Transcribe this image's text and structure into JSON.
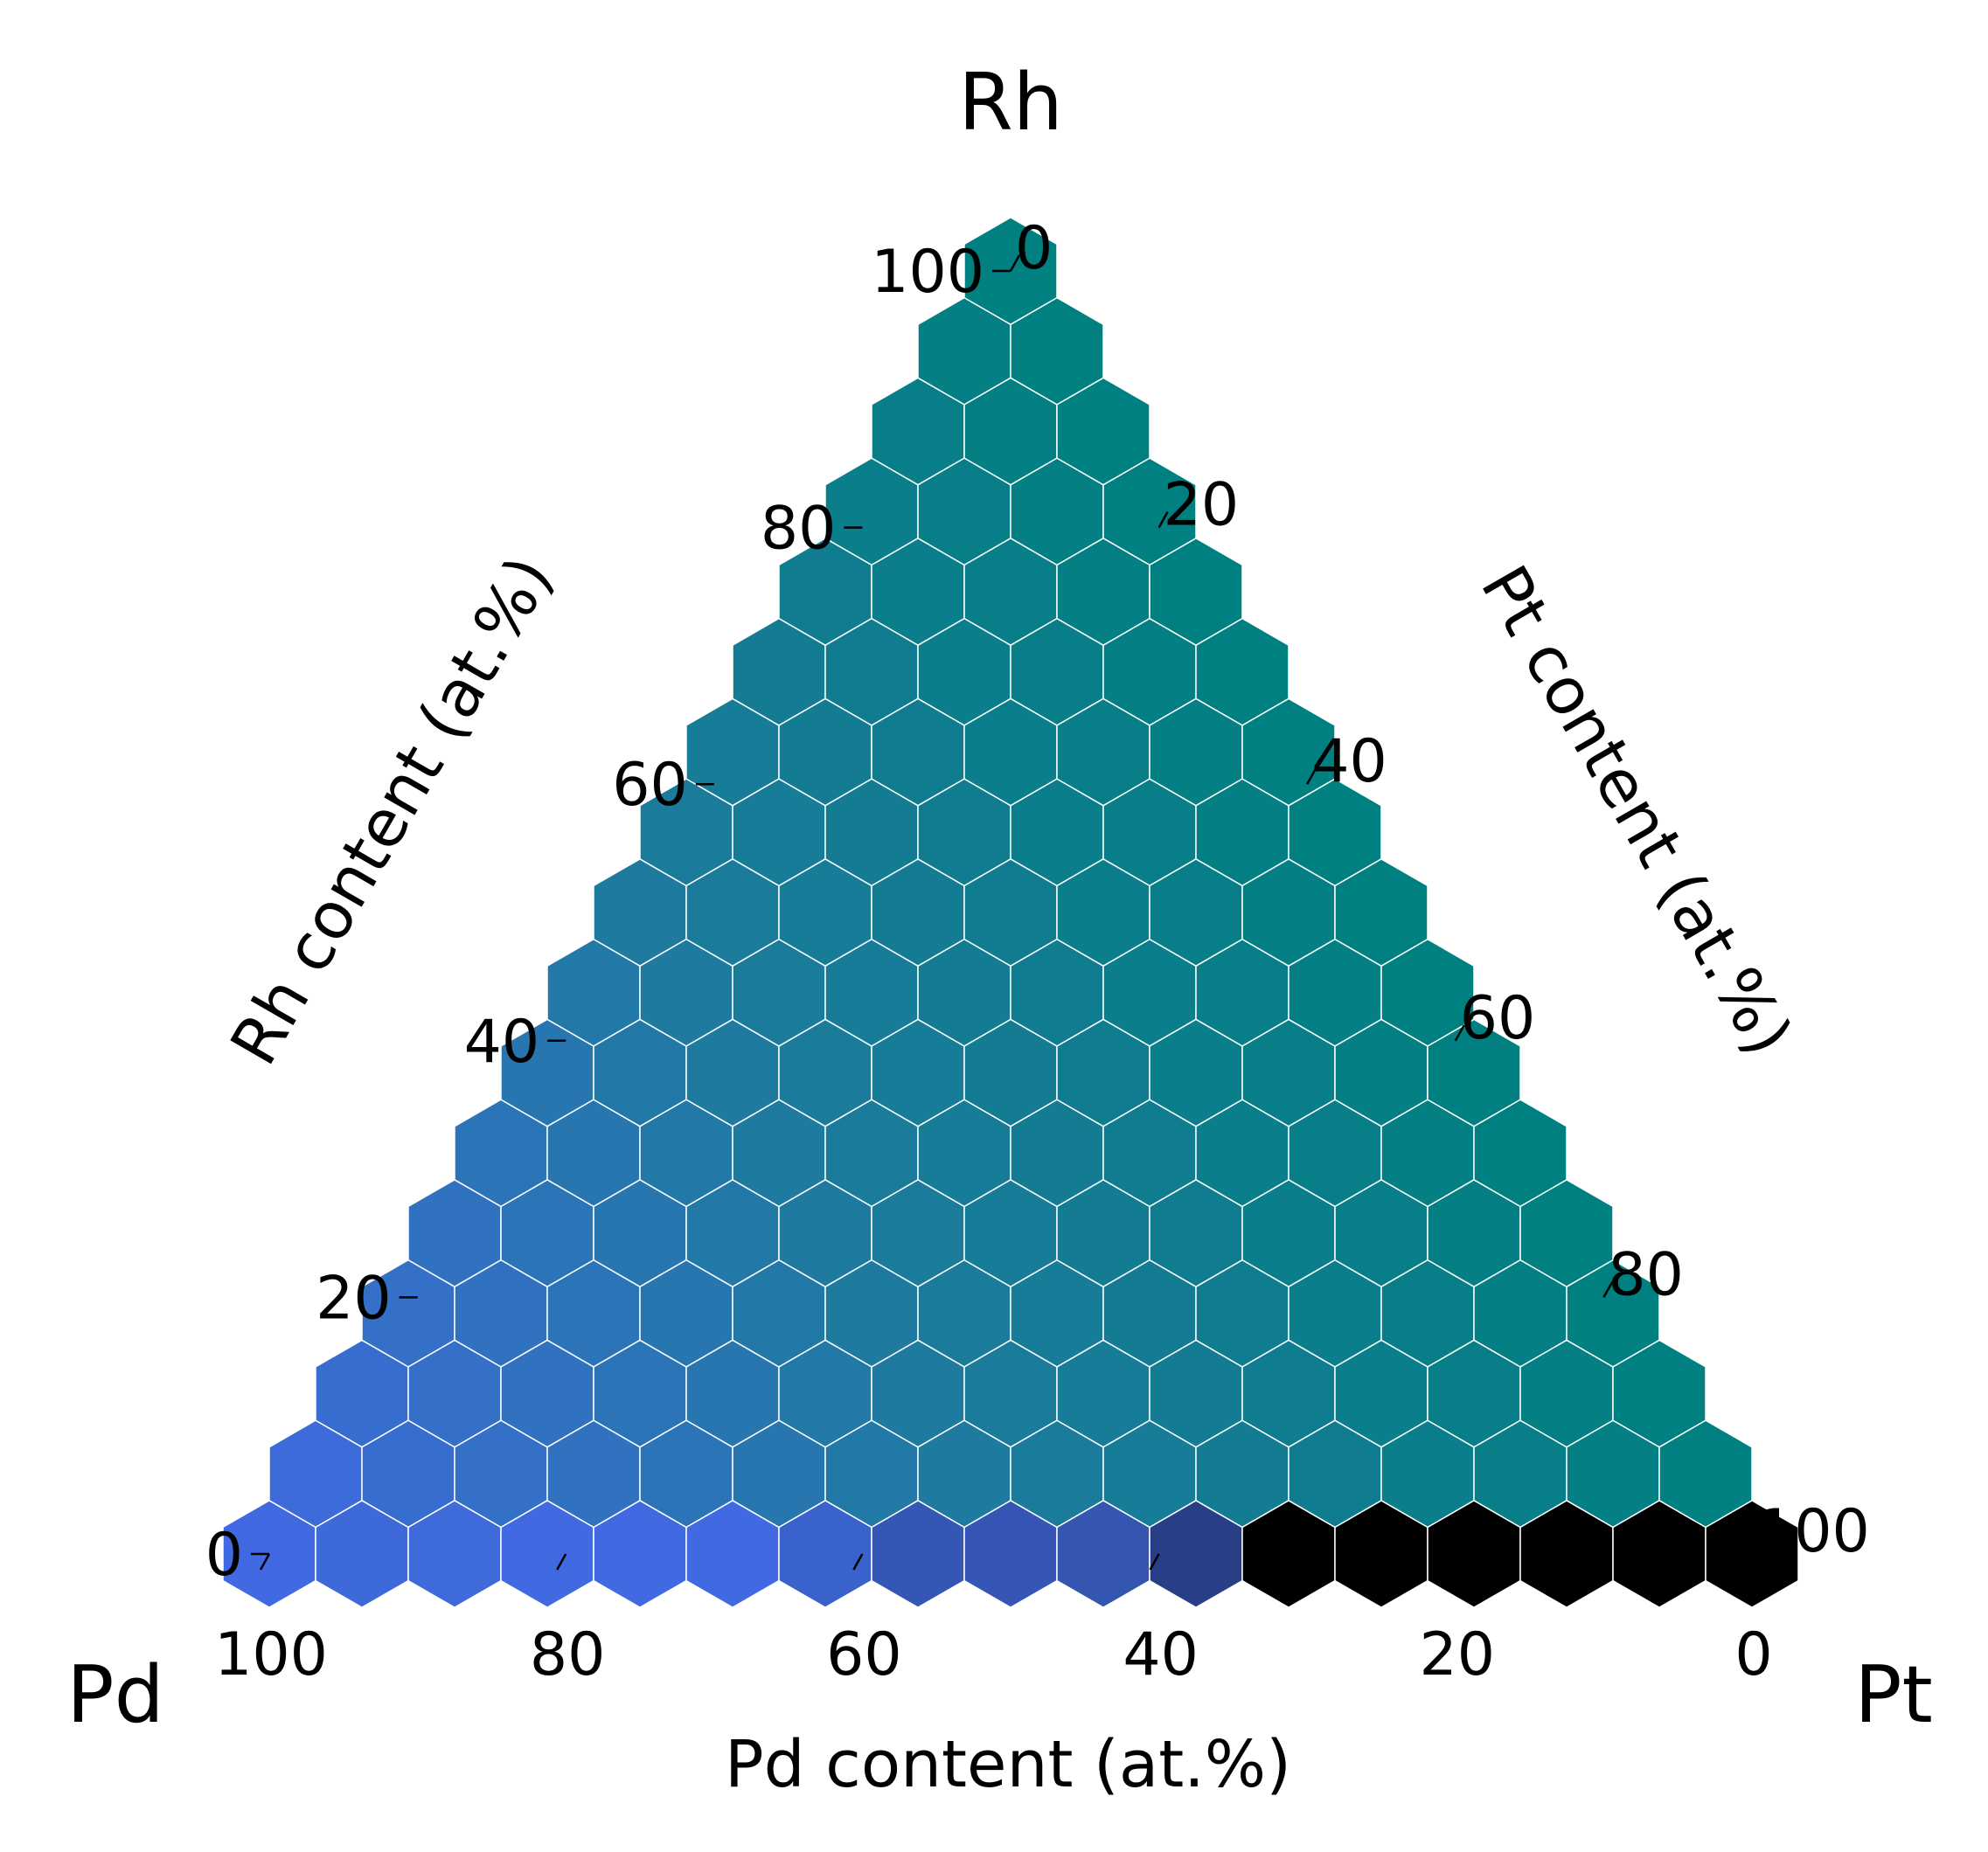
{
  "chart_data": {
    "type": "ternary-hexbin",
    "corners": {
      "top": "Rh",
      "left": "Pd",
      "right": "Pt"
    },
    "axis_titles": {
      "bottom": "Pd content (at.%)",
      "left": "Rh content (at.%)",
      "right": "Pt content (at.%)"
    },
    "ticks": {
      "bottom": [
        "100",
        "80",
        "60",
        "40",
        "20",
        "0"
      ],
      "left": [
        "0",
        "20",
        "40",
        "60",
        "80",
        "100"
      ],
      "right": [
        "0",
        "20",
        "40",
        "60",
        "80",
        "100"
      ]
    },
    "scale_steps": 17,
    "colormap": {
      "pd_rich": "#4169e1",
      "mid": "#1e7a9e",
      "rh_pt_rich": "#008080",
      "dark": "#000000"
    },
    "bottom_row_colors": [
      "#4169e1",
      "#3d6ad8",
      "#3f6ad9",
      "#4169e1",
      "#4169e1",
      "#4169e1",
      "#3a62cc",
      "#3456b4",
      "#3556b4",
      "#3456b0",
      "#283f88",
      "#000000",
      "#000000",
      "#000000",
      "#000000",
      "#000000",
      "#000000"
    ]
  }
}
